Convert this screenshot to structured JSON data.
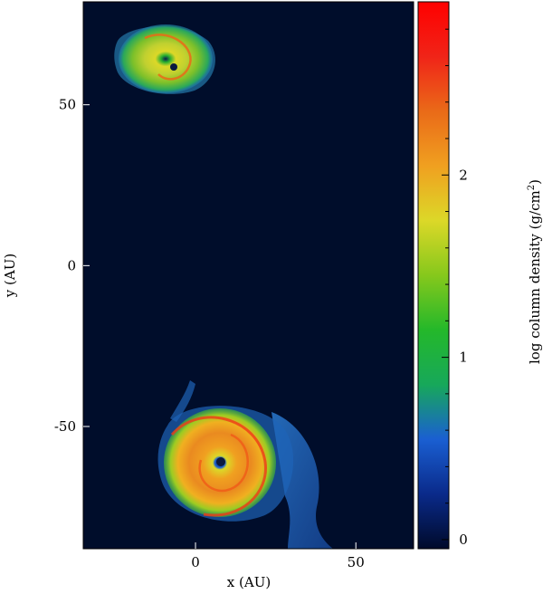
{
  "figure": {
    "x_axis": {
      "label": "x (AU)",
      "range": [
        -35,
        68
      ],
      "ticks": [
        {
          "value": 0,
          "label": "0"
        },
        {
          "value": 50,
          "label": "50"
        }
      ]
    },
    "y_axis": {
      "label": "y (AU)",
      "range": [
        -88,
        82
      ],
      "ticks": [
        {
          "value": 50,
          "label": "50"
        },
        {
          "value": 0,
          "label": "0"
        },
        {
          "value": -50,
          "label": "-50"
        }
      ]
    },
    "colorbar": {
      "label": "log column density (g/cm",
      "label_sup": "2",
      "label_end": ")",
      "range": [
        -0.05,
        2.95
      ],
      "ticks": [
        {
          "value": 2,
          "label": "2"
        },
        {
          "value": 1,
          "label": "1"
        },
        {
          "value": 0,
          "label": "0"
        }
      ],
      "colors": [
        "#000a2a",
        "#0a2a8a",
        "#1a5fd2",
        "#17a85a",
        "#24b82a",
        "#86c81c",
        "#dcd828",
        "#f0a020",
        "#ea6a18",
        "#f02418",
        "#ff0000"
      ]
    },
    "background_color": "#000d2b",
    "objects": [
      {
        "name": "upper-disk",
        "x": -7,
        "y": 62
      },
      {
        "name": "lower-disk",
        "x": 7,
        "y": -61
      }
    ]
  }
}
